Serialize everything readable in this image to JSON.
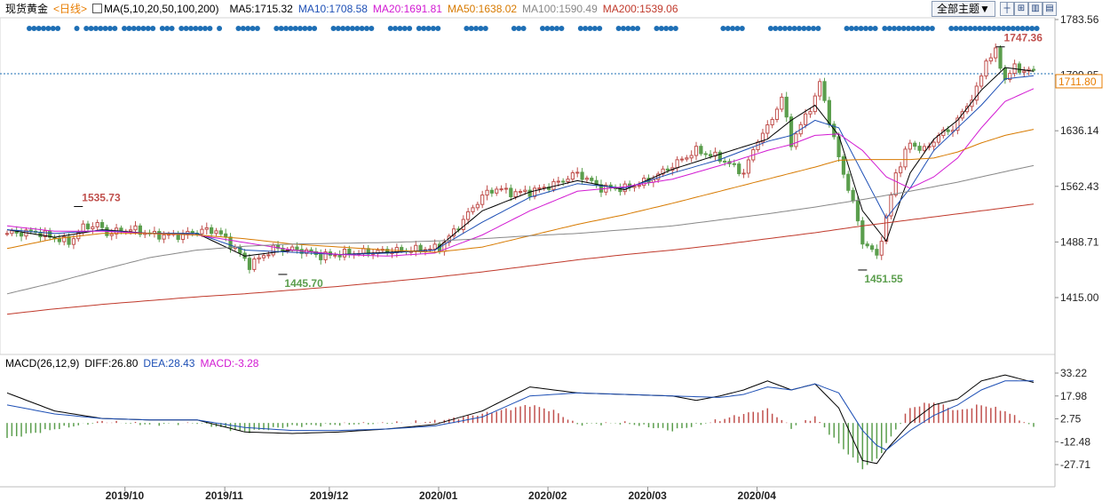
{
  "header": {
    "symbol": "现货黄金",
    "period": "<日线>",
    "ma_label": "MA(5,10,20,50,100,200)",
    "ma5": "MA5:1715.32",
    "ma10": "MA10:1708.58",
    "ma20": "MA20:1691.81",
    "ma50": "MA50:1638.02",
    "ma100": "MA100:1590.49",
    "ma200": "MA200:1539.06",
    "theme_button": "全部主题▼"
  },
  "macd_header": {
    "label": "MACD(26,12,9)",
    "diff": "DIFF:26.80",
    "dea": "DEA:28.43",
    "macd": "MACD:-3.28"
  },
  "colors": {
    "up": "#c0504d",
    "down": "#5b9e4d",
    "ma5": "#000000",
    "ma10": "#1d4fb5",
    "ma20": "#d21ad2",
    "ma50": "#d77a00",
    "ma100": "#888888",
    "ma200": "#c0392b",
    "dots": "#1e6fb5"
  },
  "chart_data": {
    "type": "candlestick",
    "price_axis": {
      "ticks": [
        "1783.56",
        "1709.85",
        "1636.14",
        "1562.43",
        "1488.71",
        "1415.00"
      ],
      "tick_values": [
        1783.56,
        1709.85,
        1636.14,
        1562.43,
        1488.71,
        1415.0
      ],
      "current_price_label": "1711.80",
      "current_price": 1711.8
    },
    "macd_axis": {
      "ticks": [
        "33.22",
        "17.98",
        "2.75",
        "-12.48",
        "-27.71"
      ],
      "tick_values": [
        33.22,
        17.98,
        2.75,
        -12.48,
        -27.71
      ]
    },
    "x_labels": [
      "2019/10",
      "2019/11",
      "2019/12",
      "2020/01",
      "2020/02",
      "2020/03",
      "2020/04"
    ],
    "annotations": [
      {
        "text": "1535.73",
        "type": "high",
        "value": 1535.73
      },
      {
        "text": "1445.70",
        "type": "low",
        "value": 1445.7
      },
      {
        "text": "1451.55",
        "type": "low",
        "value": 1451.55
      },
      {
        "text": "1747.36",
        "type": "high",
        "value": 1747.36
      }
    ],
    "close_path": [
      [
        0,
        1500
      ],
      [
        6,
        1502
      ],
      [
        13,
        1488
      ],
      [
        16,
        1508
      ],
      [
        19,
        1512
      ],
      [
        21,
        1500
      ],
      [
        26,
        1506
      ],
      [
        31,
        1498
      ],
      [
        36,
        1497
      ],
      [
        41,
        1504
      ],
      [
        44,
        1504
      ],
      [
        48,
        1480
      ],
      [
        51,
        1458
      ],
      [
        56,
        1480
      ],
      [
        62,
        1478
      ],
      [
        66,
        1470
      ],
      [
        72,
        1474
      ],
      [
        78,
        1476
      ],
      [
        85,
        1478
      ],
      [
        91,
        1481
      ],
      [
        95,
        1510
      ],
      [
        100,
        1550
      ],
      [
        103,
        1560
      ],
      [
        106,
        1554
      ],
      [
        110,
        1555
      ],
      [
        115,
        1565
      ],
      [
        120,
        1580
      ],
      [
        125,
        1560
      ],
      [
        130,
        1560
      ],
      [
        135,
        1570
      ],
      [
        140,
        1590
      ],
      [
        145,
        1610
      ],
      [
        150,
        1600
      ],
      [
        155,
        1580
      ],
      [
        158,
        1625
      ],
      [
        160,
        1640
      ],
      [
        163,
        1680
      ],
      [
        165,
        1620
      ],
      [
        168,
        1655
      ],
      [
        170,
        1680
      ],
      [
        171,
        1700
      ],
      [
        173,
        1650
      ],
      [
        175,
        1600
      ],
      [
        178,
        1540
      ],
      [
        180,
        1490
      ],
      [
        183,
        1470
      ],
      [
        185,
        1520
      ],
      [
        187,
        1580
      ],
      [
        190,
        1620
      ],
      [
        193,
        1610
      ],
      [
        196,
        1630
      ],
      [
        199,
        1640
      ],
      [
        201,
        1660
      ],
      [
        204,
        1690
      ],
      [
        206,
        1730
      ],
      [
        208,
        1740
      ],
      [
        210,
        1705
      ],
      [
        212,
        1720
      ],
      [
        214,
        1716
      ],
      [
        216,
        1715
      ]
    ],
    "ma_lines": {
      "ma5": [
        [
          0,
          1505
        ],
        [
          10,
          1495
        ],
        [
          20,
          1505
        ],
        [
          30,
          1500
        ],
        [
          40,
          1500
        ],
        [
          50,
          1470
        ],
        [
          60,
          1478
        ],
        [
          70,
          1472
        ],
        [
          80,
          1475
        ],
        [
          90,
          1478
        ],
        [
          100,
          1530
        ],
        [
          110,
          1555
        ],
        [
          120,
          1570
        ],
        [
          130,
          1558
        ],
        [
          140,
          1585
        ],
        [
          150,
          1605
        ],
        [
          160,
          1625
        ],
        [
          165,
          1650
        ],
        [
          170,
          1670
        ],
        [
          175,
          1630
        ],
        [
          180,
          1530
        ],
        [
          185,
          1490
        ],
        [
          190,
          1580
        ],
        [
          195,
          1625
        ],
        [
          200,
          1650
        ],
        [
          205,
          1690
        ],
        [
          210,
          1720
        ],
        [
          216,
          1715
        ]
      ],
      "ma10": [
        [
          0,
          1505
        ],
        [
          10,
          1500
        ],
        [
          20,
          1504
        ],
        [
          30,
          1500
        ],
        [
          40,
          1500
        ],
        [
          50,
          1478
        ],
        [
          60,
          1475
        ],
        [
          70,
          1472
        ],
        [
          80,
          1474
        ],
        [
          90,
          1478
        ],
        [
          100,
          1515
        ],
        [
          110,
          1548
        ],
        [
          120,
          1566
        ],
        [
          130,
          1560
        ],
        [
          140,
          1580
        ],
        [
          150,
          1598
        ],
        [
          160,
          1622
        ],
        [
          165,
          1630
        ],
        [
          170,
          1650
        ],
        [
          175,
          1640
        ],
        [
          180,
          1580
        ],
        [
          185,
          1520
        ],
        [
          190,
          1560
        ],
        [
          195,
          1610
        ],
        [
          200,
          1640
        ],
        [
          205,
          1670
        ],
        [
          210,
          1705
        ],
        [
          216,
          1709
        ]
      ],
      "ma20": [
        [
          0,
          1510
        ],
        [
          10,
          1503
        ],
        [
          20,
          1503
        ],
        [
          30,
          1500
        ],
        [
          40,
          1498
        ],
        [
          50,
          1488
        ],
        [
          60,
          1478
        ],
        [
          70,
          1472
        ],
        [
          80,
          1470
        ],
        [
          90,
          1474
        ],
        [
          100,
          1498
        ],
        [
          110,
          1530
        ],
        [
          120,
          1556
        ],
        [
          130,
          1562
        ],
        [
          140,
          1572
        ],
        [
          150,
          1590
        ],
        [
          160,
          1610
        ],
        [
          165,
          1618
        ],
        [
          170,
          1630
        ],
        [
          175,
          1632
        ],
        [
          180,
          1610
        ],
        [
          185,
          1575
        ],
        [
          190,
          1560
        ],
        [
          195,
          1575
        ],
        [
          200,
          1600
        ],
        [
          205,
          1640
        ],
        [
          210,
          1675
        ],
        [
          216,
          1692
        ]
      ],
      "ma50": [
        [
          0,
          1480
        ],
        [
          10,
          1493
        ],
        [
          20,
          1500
        ],
        [
          30,
          1500
        ],
        [
          40,
          1498
        ],
        [
          50,
          1493
        ],
        [
          60,
          1486
        ],
        [
          70,
          1482
        ],
        [
          80,
          1478
        ],
        [
          90,
          1475
        ],
        [
          100,
          1482
        ],
        [
          110,
          1497
        ],
        [
          120,
          1512
        ],
        [
          130,
          1525
        ],
        [
          140,
          1540
        ],
        [
          150,
          1556
        ],
        [
          160,
          1572
        ],
        [
          170,
          1588
        ],
        [
          175,
          1597
        ],
        [
          180,
          1598
        ],
        [
          185,
          1598
        ],
        [
          190,
          1598
        ],
        [
          195,
          1600
        ],
        [
          200,
          1608
        ],
        [
          205,
          1620
        ],
        [
          210,
          1630
        ],
        [
          216,
          1638
        ]
      ],
      "ma100": [
        [
          0,
          1420
        ],
        [
          10,
          1435
        ],
        [
          20,
          1452
        ],
        [
          30,
          1468
        ],
        [
          40,
          1478
        ],
        [
          50,
          1483
        ],
        [
          60,
          1486
        ],
        [
          70,
          1487
        ],
        [
          80,
          1488
        ],
        [
          90,
          1490
        ],
        [
          100,
          1493
        ],
        [
          110,
          1497
        ],
        [
          120,
          1500
        ],
        [
          130,
          1505
        ],
        [
          140,
          1510
        ],
        [
          150,
          1518
        ],
        [
          160,
          1526
        ],
        [
          170,
          1535
        ],
        [
          180,
          1545
        ],
        [
          190,
          1556
        ],
        [
          200,
          1568
        ],
        [
          210,
          1582
        ],
        [
          216,
          1590
        ]
      ],
      "ma200": [
        [
          0,
          1393
        ],
        [
          10,
          1400
        ],
        [
          20,
          1406
        ],
        [
          30,
          1411
        ],
        [
          40,
          1416
        ],
        [
          50,
          1420
        ],
        [
          60,
          1425
        ],
        [
          70,
          1430
        ],
        [
          80,
          1436
        ],
        [
          90,
          1442
        ],
        [
          100,
          1449
        ],
        [
          110,
          1457
        ],
        [
          120,
          1465
        ],
        [
          130,
          1472
        ],
        [
          140,
          1478
        ],
        [
          150,
          1485
        ],
        [
          160,
          1493
        ],
        [
          170,
          1501
        ],
        [
          180,
          1510
        ],
        [
          190,
          1518
        ],
        [
          200,
          1526
        ],
        [
          210,
          1534
        ],
        [
          216,
          1539
        ]
      ]
    },
    "macd_lines": {
      "diff": [
        [
          0,
          20
        ],
        [
          10,
          8
        ],
        [
          20,
          3
        ],
        [
          30,
          2
        ],
        [
          40,
          2
        ],
        [
          50,
          -6
        ],
        [
          60,
          -7
        ],
        [
          70,
          -6
        ],
        [
          80,
          -4
        ],
        [
          90,
          -1
        ],
        [
          100,
          8
        ],
        [
          110,
          24
        ],
        [
          120,
          20
        ],
        [
          130,
          19
        ],
        [
          140,
          18
        ],
        [
          145,
          15
        ],
        [
          150,
          18
        ],
        [
          155,
          22
        ],
        [
          160,
          28
        ],
        [
          165,
          22
        ],
        [
          170,
          26
        ],
        [
          175,
          10
        ],
        [
          180,
          -25
        ],
        [
          183,
          -27
        ],
        [
          185,
          -18
        ],
        [
          190,
          0
        ],
        [
          195,
          12
        ],
        [
          200,
          16
        ],
        [
          205,
          28
        ],
        [
          210,
          32
        ],
        [
          216,
          27
        ]
      ],
      "dea": [
        [
          0,
          12
        ],
        [
          10,
          6
        ],
        [
          20,
          3
        ],
        [
          30,
          2
        ],
        [
          40,
          2
        ],
        [
          50,
          -3
        ],
        [
          60,
          -5
        ],
        [
          70,
          -5
        ],
        [
          80,
          -4
        ],
        [
          90,
          -2
        ],
        [
          100,
          4
        ],
        [
          110,
          18
        ],
        [
          120,
          20
        ],
        [
          130,
          19
        ],
        [
          140,
          18
        ],
        [
          150,
          17
        ],
        [
          155,
          19
        ],
        [
          160,
          24
        ],
        [
          165,
          22
        ],
        [
          170,
          26
        ],
        [
          175,
          20
        ],
        [
          180,
          -5
        ],
        [
          183,
          -15
        ],
        [
          185,
          -18
        ],
        [
          190,
          -5
        ],
        [
          195,
          5
        ],
        [
          200,
          12
        ],
        [
          205,
          22
        ],
        [
          210,
          28
        ],
        [
          216,
          28
        ]
      ],
      "histogram_samples": [
        [
          0,
          -10
        ],
        [
          10,
          -4
        ],
        [
          20,
          1
        ],
        [
          30,
          -1
        ],
        [
          40,
          0
        ],
        [
          50,
          -6
        ],
        [
          60,
          -2
        ],
        [
          70,
          -1
        ],
        [
          80,
          0
        ],
        [
          90,
          1
        ],
        [
          100,
          6
        ],
        [
          110,
          12
        ],
        [
          115,
          8
        ],
        [
          120,
          -1
        ],
        [
          130,
          0
        ],
        [
          140,
          -5
        ],
        [
          150,
          2
        ],
        [
          155,
          6
        ],
        [
          160,
          9
        ],
        [
          165,
          -3
        ],
        [
          170,
          4
        ],
        [
          175,
          -14
        ],
        [
          180,
          -30
        ],
        [
          183,
          -24
        ],
        [
          185,
          -14
        ],
        [
          190,
          10
        ],
        [
          195,
          14
        ],
        [
          200,
          8
        ],
        [
          205,
          12
        ],
        [
          210,
          8
        ],
        [
          216,
          -3
        ]
      ]
    },
    "trade_dot_groups": [
      [
        0,
        6
      ],
      [
        10,
        10
      ],
      [
        12,
        18
      ],
      [
        20,
        26
      ],
      [
        28,
        30
      ],
      [
        32,
        38
      ],
      [
        40,
        40
      ],
      [
        44,
        48
      ],
      [
        52,
        60
      ],
      [
        64,
        72
      ],
      [
        76,
        80
      ],
      [
        82,
        86
      ],
      [
        92,
        96
      ],
      [
        102,
        104
      ],
      [
        108,
        112
      ],
      [
        116,
        120
      ],
      [
        124,
        128
      ],
      [
        132,
        136
      ],
      [
        146,
        150
      ],
      [
        156,
        166
      ],
      [
        172,
        178
      ],
      [
        180,
        190
      ],
      [
        194,
        212
      ]
    ]
  }
}
